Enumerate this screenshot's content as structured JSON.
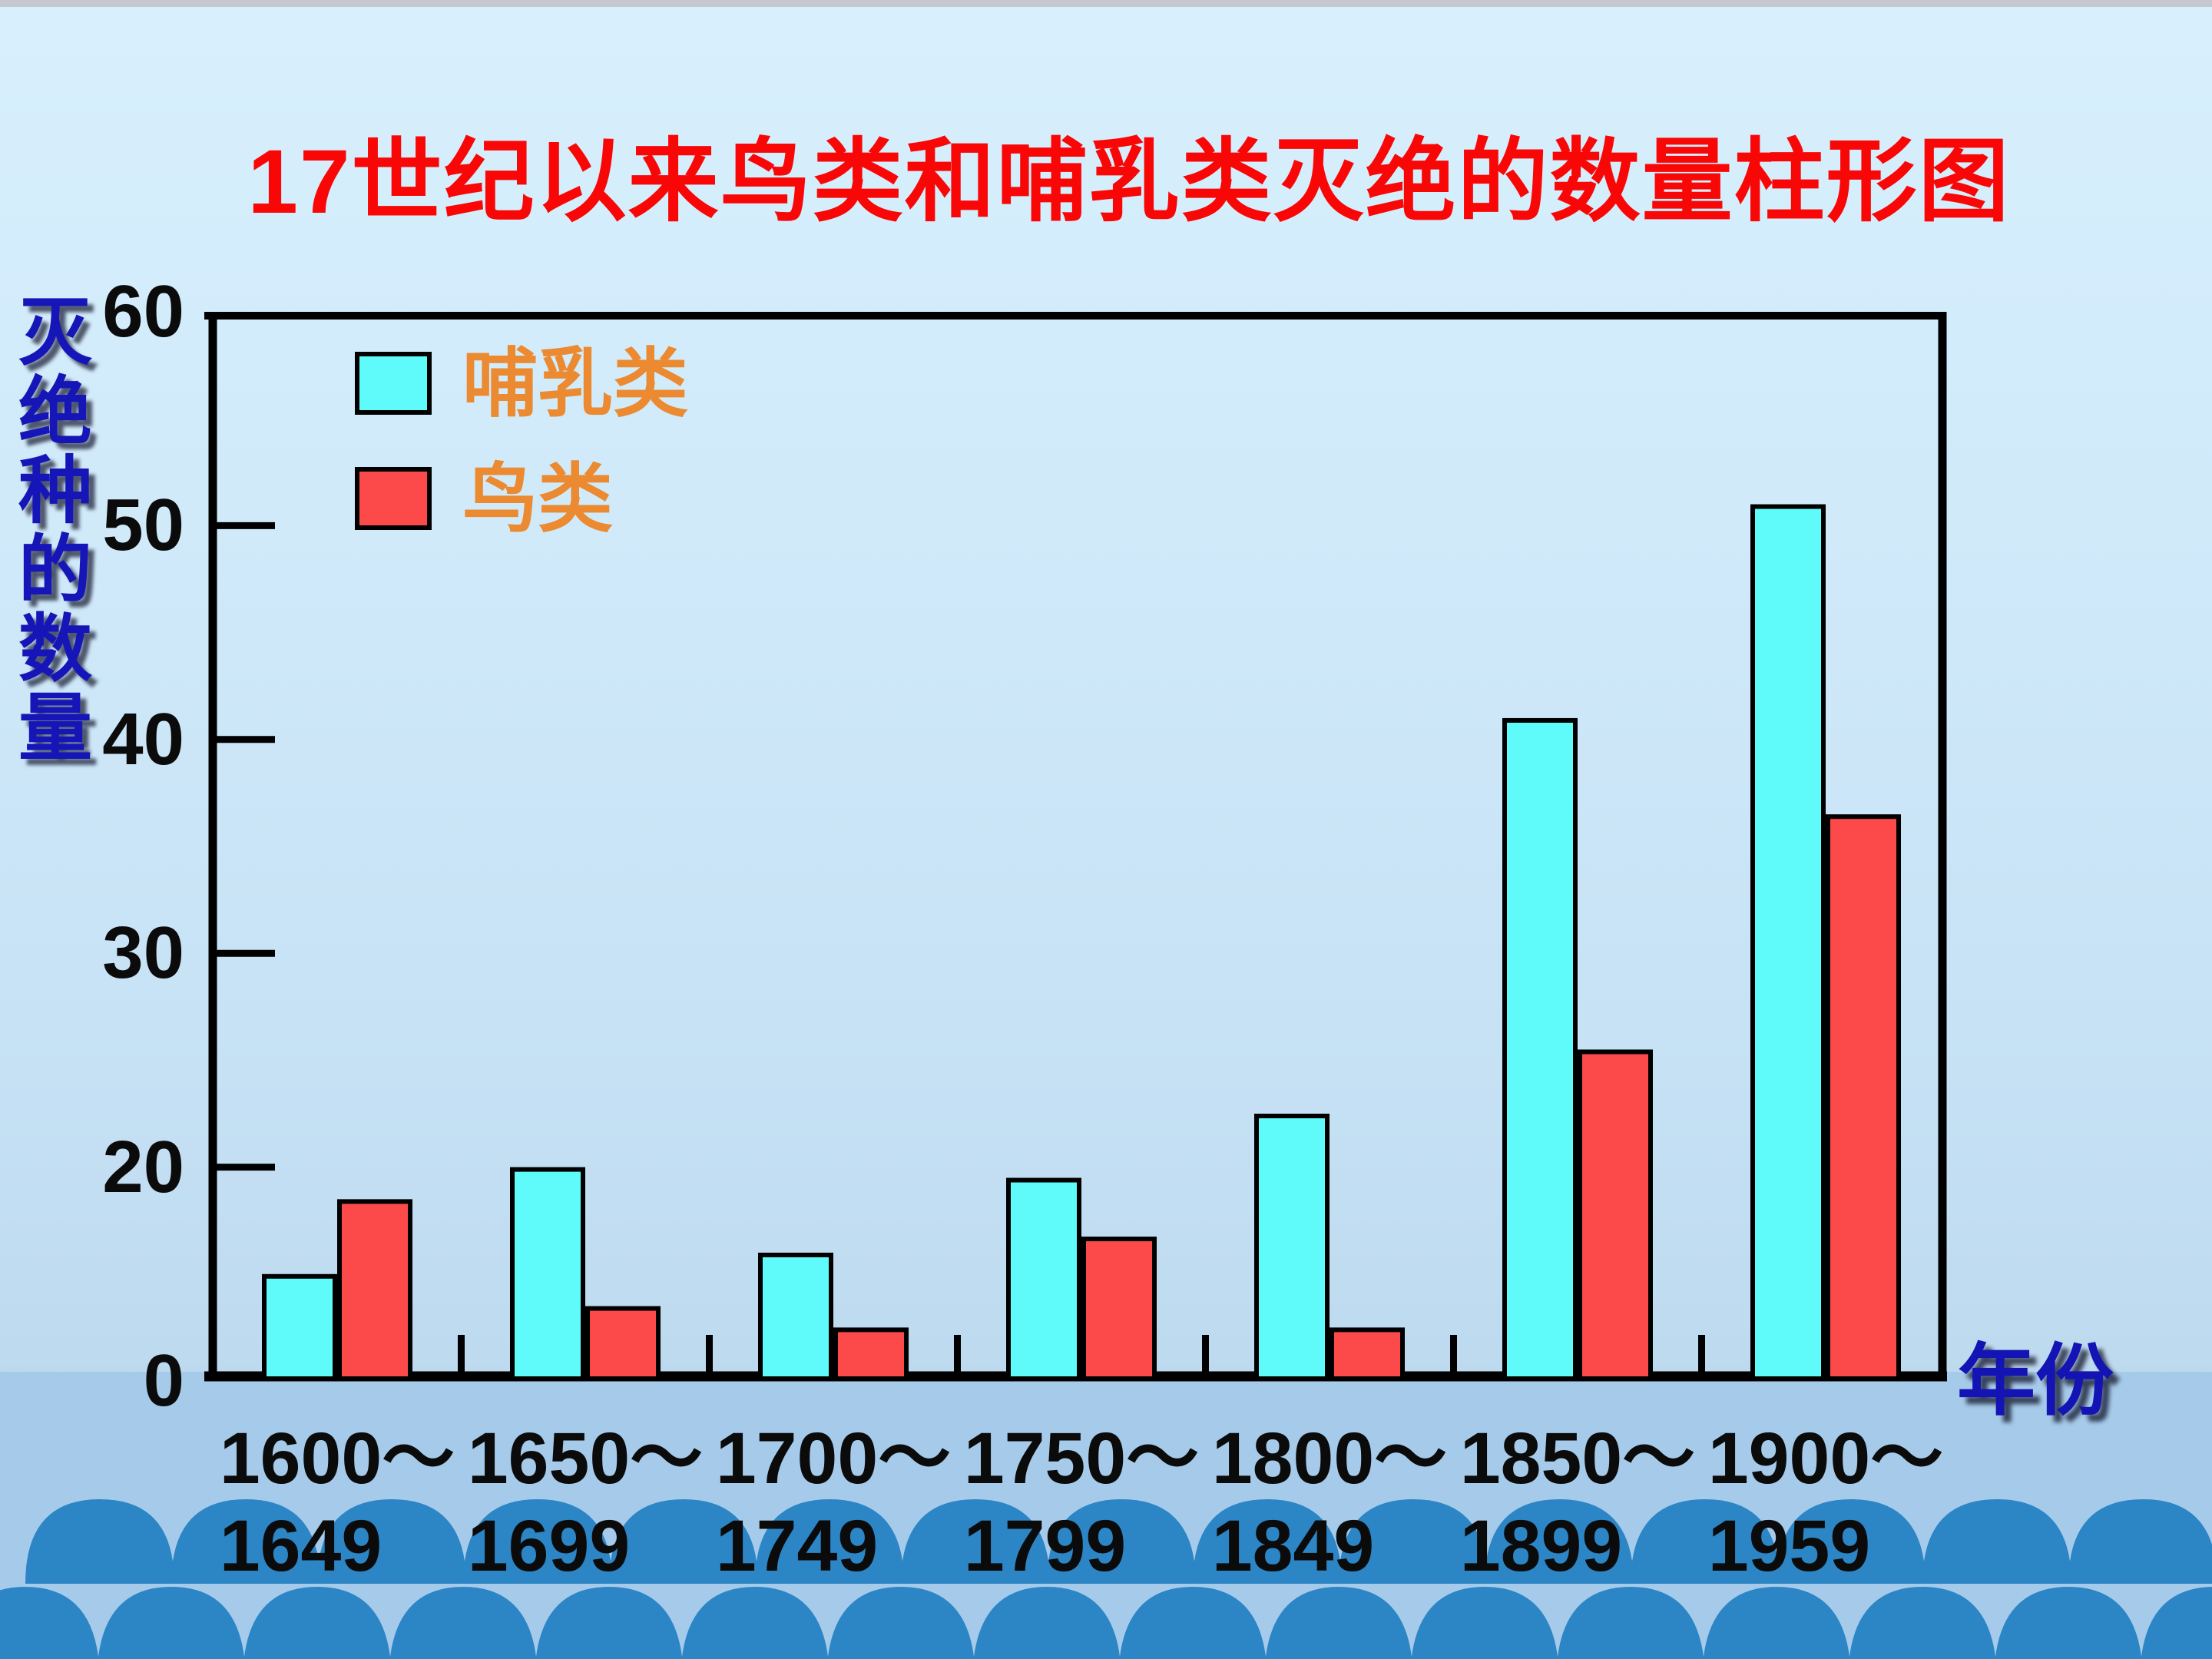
{
  "slide": {
    "title": "17世纪以来鸟类和哺乳类灭绝的数量柱形图"
  },
  "legend": [
    {
      "label": "哺乳类",
      "color": "#5ffafa"
    },
    {
      "label": "鸟类",
      "color": "#fb4a49"
    }
  ],
  "chart_data": {
    "type": "bar",
    "title": "17世纪以来鸟类和哺乳类灭绝的数量柱形图",
    "xlabel": "年份",
    "ylabel": "灭绝种的数量",
    "categories": [
      "1600～1649",
      "1650～1699",
      "1700～1749",
      "1750～1799",
      "1800～1849",
      "1850～1899",
      "1900～1959"
    ],
    "category_lines": [
      [
        "1600～",
        "1649"
      ],
      [
        "1650～",
        "1699"
      ],
      [
        "1700～",
        "1749"
      ],
      [
        "1750～",
        "1799"
      ],
      [
        "1800～",
        "1849"
      ],
      [
        "1850～",
        "1899"
      ],
      [
        "1900～",
        "1959"
      ]
    ],
    "series": [
      {
        "name": "哺乳类",
        "color": "#5ffafa",
        "values": [
          10,
          20,
          12,
          19,
          22.5,
          41,
          51
        ]
      },
      {
        "name": "鸟类",
        "color": "#fb4a49",
        "values": [
          17,
          7,
          5,
          13.5,
          5,
          25.5,
          36.5
        ]
      }
    ],
    "y_ticks": [
      60,
      50,
      40,
      30,
      20,
      0
    ],
    "ylim": [
      0,
      60
    ],
    "grid": false,
    "legend_position": "top-left inside plot",
    "bar_outline": "#000000"
  },
  "colors": {
    "title_red": "#f90707",
    "axis_label_blue": "#1414b4",
    "legend_text_orange": "#eb8a30",
    "tick_text_black": "#0b0b0b",
    "background_top": "#d8f0fd",
    "background_bottom": "#bcd8ee",
    "footer_band": "#a6cbea",
    "wave_blue": "#2c85c5",
    "axis_line": "#000000"
  }
}
